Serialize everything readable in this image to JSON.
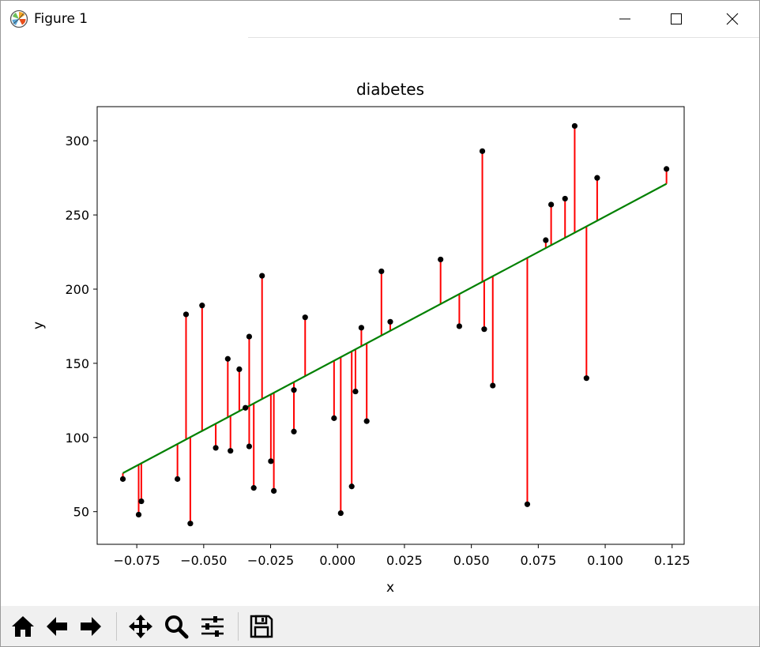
{
  "window": {
    "title": "Figure 1"
  },
  "titlebar_icons": [
    "matplotlib-logo-icon",
    "minimize-icon",
    "maximize-icon",
    "close-icon"
  ],
  "toolbar": {
    "buttons": [
      {
        "name": "home-button",
        "icon": "home-icon"
      },
      {
        "name": "back-button",
        "icon": "arrow-left-icon"
      },
      {
        "name": "forward-button",
        "icon": "arrow-right-icon"
      },
      {
        "name": "pan-button",
        "icon": "move-arrows-icon"
      },
      {
        "name": "zoom-button",
        "icon": "magnifier-icon"
      },
      {
        "name": "configure-subplots-button",
        "icon": "sliders-icon"
      },
      {
        "name": "save-button",
        "icon": "floppy-disk-icon"
      }
    ]
  },
  "chart_data": {
    "type": "scatter",
    "title": "diabetes",
    "xlabel": "x",
    "ylabel": "y",
    "xlim": [
      -0.0898,
      0.1295
    ],
    "ylim": [
      28,
      323
    ],
    "xticks": [
      -0.075,
      -0.05,
      -0.025,
      0.0,
      0.025,
      0.05,
      0.075,
      0.1,
      0.125
    ],
    "xtick_labels": [
      "−0.075",
      "−0.050",
      "−0.025",
      "0.000",
      "0.025",
      "0.050",
      "0.075",
      "0.100",
      "0.125"
    ],
    "yticks": [
      50,
      100,
      150,
      200,
      250,
      300
    ],
    "ytick_labels": [
      "50",
      "100",
      "150",
      "200",
      "250",
      "300"
    ],
    "grid": false,
    "colors": {
      "points": "#000000",
      "residuals": "#ff0000",
      "fit_line": "#008000"
    },
    "fit_line": {
      "x": [
        -0.0802,
        0.1229
      ],
      "y": [
        76,
        271
      ]
    },
    "points": [
      {
        "x": -0.0802,
        "y": 72
      },
      {
        "x": -0.0743,
        "y": 48
      },
      {
        "x": -0.0733,
        "y": 57
      },
      {
        "x": -0.0598,
        "y": 72
      },
      {
        "x": -0.0566,
        "y": 183
      },
      {
        "x": -0.055,
        "y": 42
      },
      {
        "x": -0.0506,
        "y": 189
      },
      {
        "x": -0.0455,
        "y": 93
      },
      {
        "x": -0.041,
        "y": 153
      },
      {
        "x": -0.04,
        "y": 91
      },
      {
        "x": -0.0367,
        "y": 146
      },
      {
        "x": -0.0344,
        "y": 120
      },
      {
        "x": -0.033,
        "y": 168
      },
      {
        "x": -0.033,
        "y": 94
      },
      {
        "x": -0.0313,
        "y": 66
      },
      {
        "x": -0.0282,
        "y": 209
      },
      {
        "x": -0.0249,
        "y": 84
      },
      {
        "x": -0.0238,
        "y": 64
      },
      {
        "x": -0.0163,
        "y": 132
      },
      {
        "x": -0.0163,
        "y": 104
      },
      {
        "x": -0.0121,
        "y": 181
      },
      {
        "x": -0.0013,
        "y": 113
      },
      {
        "x": 0.0012,
        "y": 49
      },
      {
        "x": 0.0053,
        "y": 67
      },
      {
        "x": 0.0067,
        "y": 131
      },
      {
        "x": 0.0089,
        "y": 174
      },
      {
        "x": 0.0109,
        "y": 111
      },
      {
        "x": 0.0164,
        "y": 212
      },
      {
        "x": 0.0197,
        "y": 178
      },
      {
        "x": 0.0385,
        "y": 220
      },
      {
        "x": 0.0455,
        "y": 175
      },
      {
        "x": 0.0541,
        "y": 293
      },
      {
        "x": 0.0548,
        "y": 173
      },
      {
        "x": 0.058,
        "y": 135
      },
      {
        "x": 0.0709,
        "y": 55
      },
      {
        "x": 0.0778,
        "y": 233
      },
      {
        "x": 0.0798,
        "y": 257
      },
      {
        "x": 0.085,
        "y": 261
      },
      {
        "x": 0.0886,
        "y": 310
      },
      {
        "x": 0.093,
        "y": 140
      },
      {
        "x": 0.097,
        "y": 275
      },
      {
        "x": 0.1229,
        "y": 281
      }
    ]
  }
}
